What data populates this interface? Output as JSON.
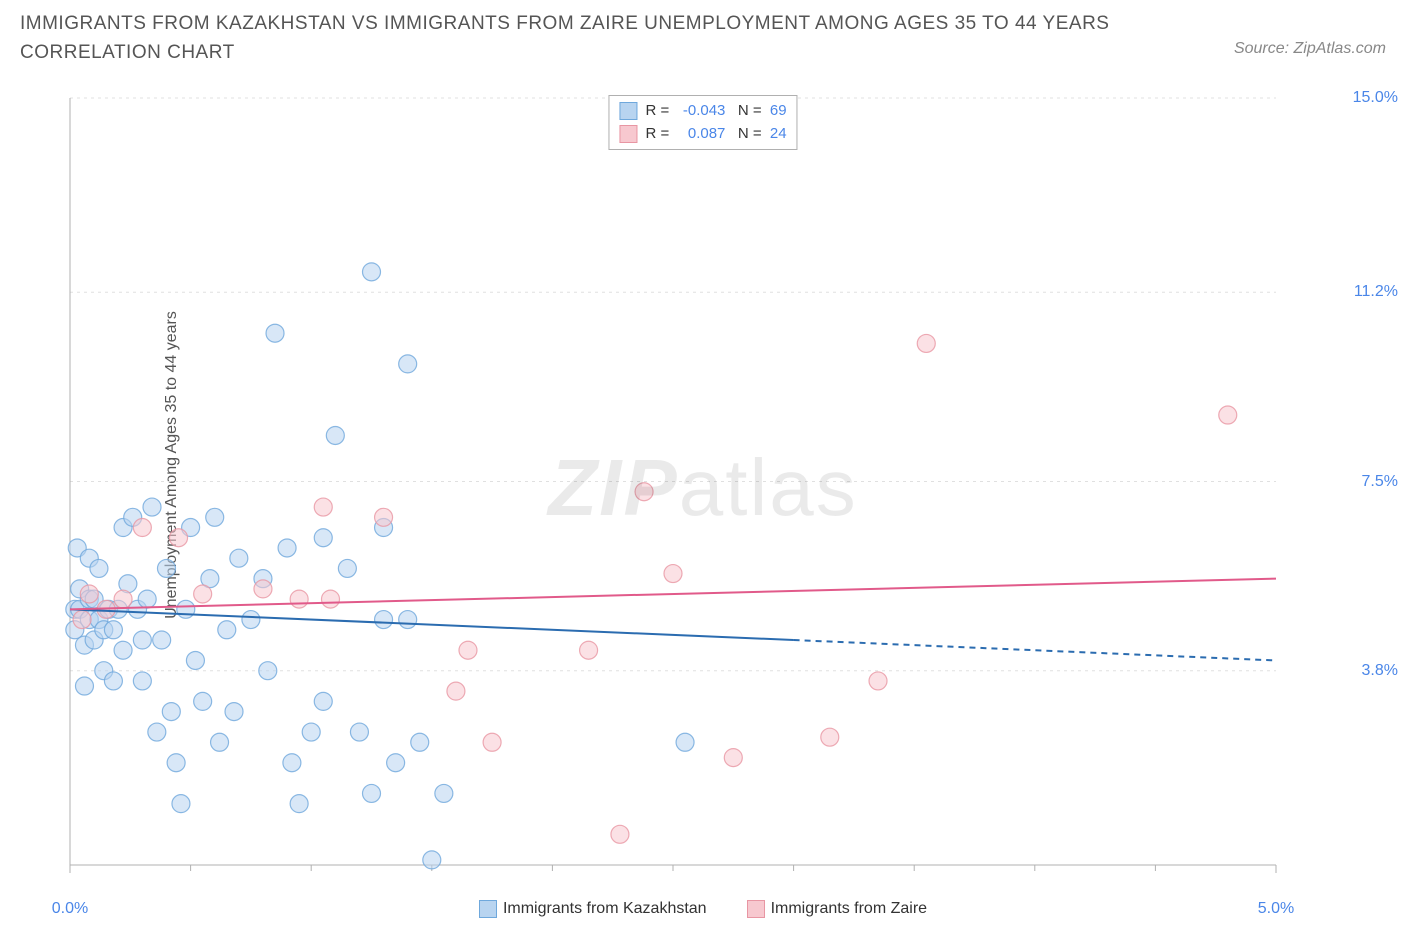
{
  "header": {
    "title": "IMMIGRANTS FROM KAZAKHSTAN VS IMMIGRANTS FROM ZAIRE UNEMPLOYMENT AMONG AGES 35 TO 44 YEARS CORRELATION CHART",
    "source_prefix": "Source: ",
    "source_name": "ZipAtlas.com"
  },
  "watermark": {
    "zip": "ZIP",
    "atlas": "atlas"
  },
  "chart": {
    "type": "scatter",
    "background_color": "#ffffff",
    "grid_color": "#e0e0e0",
    "axis_color": "#b0b0b0",
    "text_color": "#555555",
    "value_color": "#4a86e8",
    "ylabel": "Unemployment Among Ages 35 to 44 years",
    "label_fontsize": 16,
    "xlim": [
      0.0,
      5.0
    ],
    "ylim": [
      0.0,
      15.0
    ],
    "x_ticks": [
      {
        "pos": 0.0,
        "label": "0.0%"
      },
      {
        "pos": 5.0,
        "label": "5.0%"
      }
    ],
    "x_minor_ticks": [
      0.5,
      1.0,
      1.5,
      2.0,
      2.5,
      3.0,
      3.5,
      4.0,
      4.5
    ],
    "y_ticks": [
      {
        "pos": 3.8,
        "label": "3.8%"
      },
      {
        "pos": 7.5,
        "label": "7.5%"
      },
      {
        "pos": 11.2,
        "label": "11.2%"
      },
      {
        "pos": 15.0,
        "label": "15.0%"
      }
    ],
    "marker_radius": 9,
    "marker_opacity": 0.55,
    "marker_stroke_width": 1.2,
    "series": [
      {
        "key": "kazakhstan",
        "name": "Immigrants from Kazakhstan",
        "fill_color": "#b8d4f0",
        "stroke_color": "#6fa8dc",
        "swatch_fill": "#b8d4f0",
        "swatch_border": "#6fa8dc",
        "stats": {
          "R": "-0.043",
          "N": "69"
        },
        "trend": {
          "color": "#2b6cb0",
          "width": 2,
          "y_at_xmin": 5.0,
          "y_at_xmax": 4.0,
          "solid_x_end": 3.0
        },
        "points": [
          [
            0.02,
            5.0
          ],
          [
            0.02,
            4.6
          ],
          [
            0.03,
            6.2
          ],
          [
            0.04,
            5.0
          ],
          [
            0.04,
            5.4
          ],
          [
            0.06,
            4.3
          ],
          [
            0.06,
            3.5
          ],
          [
            0.08,
            6.0
          ],
          [
            0.08,
            5.2
          ],
          [
            0.08,
            4.8
          ],
          [
            0.1,
            5.2
          ],
          [
            0.1,
            4.4
          ],
          [
            0.12,
            5.8
          ],
          [
            0.12,
            4.8
          ],
          [
            0.14,
            4.6
          ],
          [
            0.14,
            3.8
          ],
          [
            0.16,
            5.0
          ],
          [
            0.18,
            4.6
          ],
          [
            0.18,
            3.6
          ],
          [
            0.2,
            5.0
          ],
          [
            0.22,
            6.6
          ],
          [
            0.22,
            4.2
          ],
          [
            0.24,
            5.5
          ],
          [
            0.26,
            6.8
          ],
          [
            0.28,
            5.0
          ],
          [
            0.3,
            4.4
          ],
          [
            0.3,
            3.6
          ],
          [
            0.32,
            5.2
          ],
          [
            0.34,
            7.0
          ],
          [
            0.36,
            2.6
          ],
          [
            0.38,
            4.4
          ],
          [
            0.4,
            5.8
          ],
          [
            0.42,
            3.0
          ],
          [
            0.44,
            2.0
          ],
          [
            0.46,
            1.2
          ],
          [
            0.48,
            5.0
          ],
          [
            0.5,
            6.6
          ],
          [
            0.52,
            4.0
          ],
          [
            0.55,
            3.2
          ],
          [
            0.58,
            5.6
          ],
          [
            0.6,
            6.8
          ],
          [
            0.62,
            2.4
          ],
          [
            0.65,
            4.6
          ],
          [
            0.68,
            3.0
          ],
          [
            0.7,
            6.0
          ],
          [
            0.75,
            4.8
          ],
          [
            0.8,
            5.6
          ],
          [
            0.82,
            3.8
          ],
          [
            0.85,
            10.4
          ],
          [
            0.9,
            6.2
          ],
          [
            0.92,
            2.0
          ],
          [
            0.95,
            1.2
          ],
          [
            1.0,
            2.6
          ],
          [
            1.05,
            3.2
          ],
          [
            1.05,
            6.4
          ],
          [
            1.1,
            8.4
          ],
          [
            1.15,
            5.8
          ],
          [
            1.2,
            2.6
          ],
          [
            1.25,
            1.4
          ],
          [
            1.25,
            11.6
          ],
          [
            1.3,
            4.8
          ],
          [
            1.3,
            6.6
          ],
          [
            1.35,
            2.0
          ],
          [
            1.4,
            4.8
          ],
          [
            1.4,
            9.8
          ],
          [
            1.45,
            2.4
          ],
          [
            1.5,
            0.1
          ],
          [
            1.55,
            1.4
          ],
          [
            2.55,
            2.4
          ]
        ]
      },
      {
        "key": "zaire",
        "name": "Immigrants from Zaire",
        "fill_color": "#f7c8cf",
        "stroke_color": "#e896a3",
        "swatch_fill": "#f7c8cf",
        "swatch_border": "#e896a3",
        "stats": {
          "R": "0.087",
          "N": "24"
        },
        "trend": {
          "color": "#e15a8a",
          "width": 2,
          "y_at_xmin": 5.0,
          "y_at_xmax": 5.6,
          "solid_x_end": 5.0
        },
        "points": [
          [
            0.05,
            4.8
          ],
          [
            0.08,
            5.3
          ],
          [
            0.15,
            5.0
          ],
          [
            0.22,
            5.2
          ],
          [
            0.3,
            6.6
          ],
          [
            0.45,
            6.4
          ],
          [
            0.55,
            5.3
          ],
          [
            0.8,
            5.4
          ],
          [
            0.95,
            5.2
          ],
          [
            1.05,
            7.0
          ],
          [
            1.08,
            5.2
          ],
          [
            1.3,
            6.8
          ],
          [
            1.6,
            3.4
          ],
          [
            1.65,
            4.2
          ],
          [
            1.75,
            2.4
          ],
          [
            2.15,
            4.2
          ],
          [
            2.28,
            0.6
          ],
          [
            2.38,
            7.3
          ],
          [
            2.5,
            5.7
          ],
          [
            2.75,
            2.1
          ],
          [
            3.15,
            2.5
          ],
          [
            3.35,
            3.6
          ],
          [
            3.55,
            10.2
          ],
          [
            4.8,
            8.8
          ]
        ]
      }
    ],
    "top_legend_labels": {
      "R_label": "R =",
      "N_label": "N ="
    },
    "bottom_legend_order": [
      "kazakhstan",
      "zaire"
    ]
  }
}
